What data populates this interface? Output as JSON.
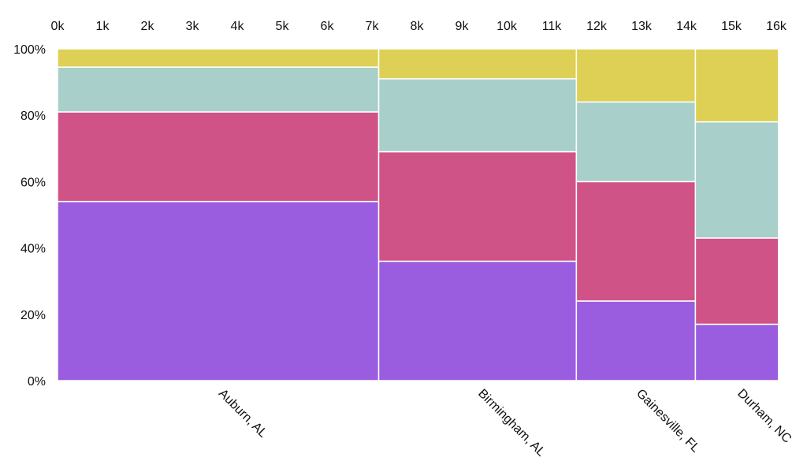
{
  "chart_data": {
    "type": "mosaic",
    "title": "",
    "xlabel": "",
    "ylabel": "",
    "x_axis_position": "top",
    "x_ticks": [
      "0k",
      "1k",
      "2k",
      "3k",
      "4k",
      "5k",
      "6k",
      "7k",
      "8k",
      "9k",
      "10k",
      "11k",
      "12k",
      "13k",
      "14k",
      "15k",
      "16k"
    ],
    "x_range": [
      0,
      16000
    ],
    "y_ticks": [
      "0%",
      "20%",
      "40%",
      "60%",
      "80%",
      "100%"
    ],
    "y_range": [
      0,
      100
    ],
    "grid": false,
    "legend": "none",
    "series_colors": [
      "#9b5de0",
      "#d05387",
      "#a8cfca",
      "#ddd055"
    ],
    "categories": [
      {
        "name": "Auburn, AL",
        "start": 0,
        "end": 7150,
        "shares": [
          54,
          27,
          13.5,
          5.5
        ]
      },
      {
        "name": "Birmingham, AL",
        "start": 7150,
        "end": 11550,
        "shares": [
          36,
          33,
          22,
          9
        ]
      },
      {
        "name": "Gainesville, FL",
        "start": 11550,
        "end": 14200,
        "shares": [
          24,
          36,
          24,
          16
        ]
      },
      {
        "name": "Durham, NC",
        "start": 14200,
        "end": 16050,
        "shares": [
          17,
          26,
          35,
          22
        ]
      }
    ]
  }
}
